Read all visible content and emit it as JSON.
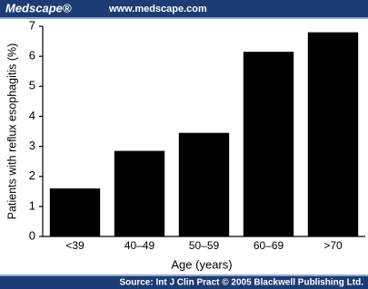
{
  "header": {
    "brand": "Medscape®",
    "url": "www.medscape.com"
  },
  "footer": {
    "source": "Source: Int J Clin Pract © 2005 Blackwell Publishing Ltd."
  },
  "chart_data": {
    "type": "bar",
    "x_label": "Age (years)",
    "y_label": "Patients with reflux esophagitis (%)",
    "categories": [
      "<39",
      "40–49",
      "50–59",
      "60–69",
      ">70"
    ],
    "values": [
      1.6,
      2.85,
      3.45,
      6.15,
      6.8
    ],
    "color": "#000000",
    "ylim": [
      0,
      7
    ],
    "yticks": [
      0,
      1,
      2,
      3,
      4,
      5,
      6,
      7
    ],
    "grid": false
  }
}
